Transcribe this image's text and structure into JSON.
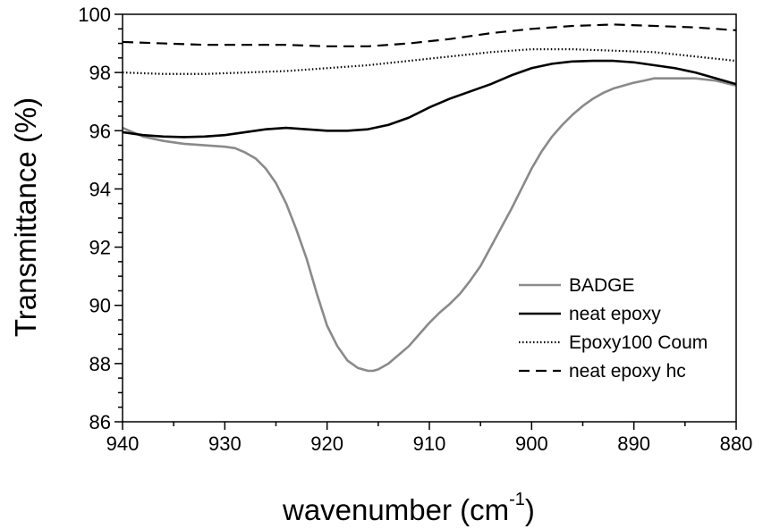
{
  "chart_data": {
    "type": "line",
    "title": "",
    "xlabel": "wavenumber (cm",
    "xlabel_sup": "-1",
    "xlabel_close": ")",
    "ylabel": "Transmittance (%)",
    "xlim": [
      940,
      880
    ],
    "ylim": [
      86,
      100
    ],
    "x_reversed": true,
    "x_ticks": [
      940,
      930,
      920,
      910,
      900,
      890,
      880
    ],
    "y_ticks": [
      86,
      88,
      90,
      92,
      94,
      96,
      98,
      100
    ],
    "grid": false,
    "legend_position": "lower-right",
    "series": [
      {
        "name": "BADGE",
        "color": "#8a8a8a",
        "dash": "solid",
        "x": [
          940,
          938,
          936,
          934,
          932,
          930,
          929,
          928,
          927,
          926,
          925,
          924,
          923,
          922,
          921,
          920,
          919,
          918,
          917,
          916,
          915.5,
          915,
          914,
          913,
          912,
          911,
          910,
          909,
          908,
          907,
          906,
          905,
          904,
          903,
          902,
          901,
          900,
          899,
          898,
          897,
          896,
          895,
          894,
          893,
          892,
          891,
          890,
          889,
          888,
          886,
          884,
          882,
          880
        ],
        "y": [
          96.1,
          95.8,
          95.65,
          95.55,
          95.5,
          95.45,
          95.4,
          95.25,
          95.05,
          94.7,
          94.2,
          93.5,
          92.6,
          91.6,
          90.4,
          89.3,
          88.6,
          88.1,
          87.85,
          87.75,
          87.75,
          87.8,
          88.0,
          88.3,
          88.6,
          89.0,
          89.4,
          89.75,
          90.05,
          90.4,
          90.85,
          91.35,
          92.0,
          92.65,
          93.3,
          94.0,
          94.7,
          95.3,
          95.8,
          96.2,
          96.55,
          96.85,
          97.1,
          97.3,
          97.45,
          97.55,
          97.65,
          97.72,
          97.8,
          97.8,
          97.8,
          97.72,
          97.55
        ]
      },
      {
        "name": "neat epoxy",
        "color": "#000000",
        "dash": "solid",
        "x": [
          940,
          938,
          936,
          934,
          932,
          930,
          928,
          926,
          924,
          922,
          920,
          918,
          916,
          914,
          912,
          910,
          908,
          906,
          904,
          902,
          900,
          898,
          896,
          894,
          892,
          890,
          888,
          886,
          884,
          882,
          880
        ],
        "y": [
          95.95,
          95.85,
          95.8,
          95.78,
          95.8,
          95.85,
          95.95,
          96.05,
          96.1,
          96.05,
          96.0,
          96.0,
          96.05,
          96.2,
          96.45,
          96.8,
          97.1,
          97.35,
          97.6,
          97.9,
          98.15,
          98.3,
          98.38,
          98.4,
          98.4,
          98.35,
          98.25,
          98.15,
          98.0,
          97.8,
          97.6
        ]
      },
      {
        "name": "Epoxy100 Coum",
        "color": "#000000",
        "dash": "dotted",
        "x": [
          940,
          936,
          932,
          928,
          924,
          920,
          916,
          912,
          908,
          904,
          900,
          896,
          892,
          888,
          884,
          880
        ],
        "y": [
          98.0,
          97.95,
          97.95,
          98.0,
          98.05,
          98.15,
          98.25,
          98.4,
          98.55,
          98.7,
          98.8,
          98.8,
          98.75,
          98.7,
          98.55,
          98.4
        ]
      },
      {
        "name": "neat epoxy hc",
        "color": "#000000",
        "dash": "dashed",
        "x": [
          940,
          936,
          932,
          928,
          924,
          920,
          916,
          912,
          908,
          904,
          900,
          896,
          892,
          888,
          884,
          880
        ],
        "y": [
          99.05,
          99.0,
          98.95,
          98.95,
          98.95,
          98.9,
          98.9,
          99.0,
          99.15,
          99.35,
          99.5,
          99.6,
          99.65,
          99.6,
          99.55,
          99.45
        ]
      }
    ]
  }
}
